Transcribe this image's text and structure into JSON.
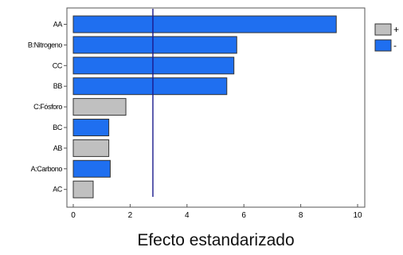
{
  "chart_data": {
    "type": "bar",
    "orientation": "horizontal",
    "title": "",
    "xlabel": "Efecto estandarizado",
    "ylabel": "",
    "xlim": [
      -0.5,
      10.5
    ],
    "xticks": [
      0,
      2,
      4,
      6,
      8,
      10
    ],
    "categories": [
      "AA",
      "B:Nitrogeno",
      "CC",
      "BB",
      "C:Fósforo",
      "BC",
      "AB",
      "A:Carbono",
      "AC"
    ],
    "values": [
      9.25,
      5.75,
      5.65,
      5.4,
      1.85,
      1.25,
      1.25,
      1.3,
      0.7
    ],
    "signs": [
      "-",
      "-",
      "-",
      "-",
      "+",
      "-",
      "+",
      "-",
      "+"
    ],
    "reference_line": 2.8,
    "grid": false,
    "legend": {
      "position": "right",
      "entries": [
        {
          "label": "+",
          "color": "#c0c0c0"
        },
        {
          "label": "-",
          "color": "#1f6ff0"
        }
      ]
    },
    "colors": {
      "positive": "#c0c0c0",
      "negative": "#1f6ff0",
      "reference_line": "#1a1a8c"
    }
  }
}
